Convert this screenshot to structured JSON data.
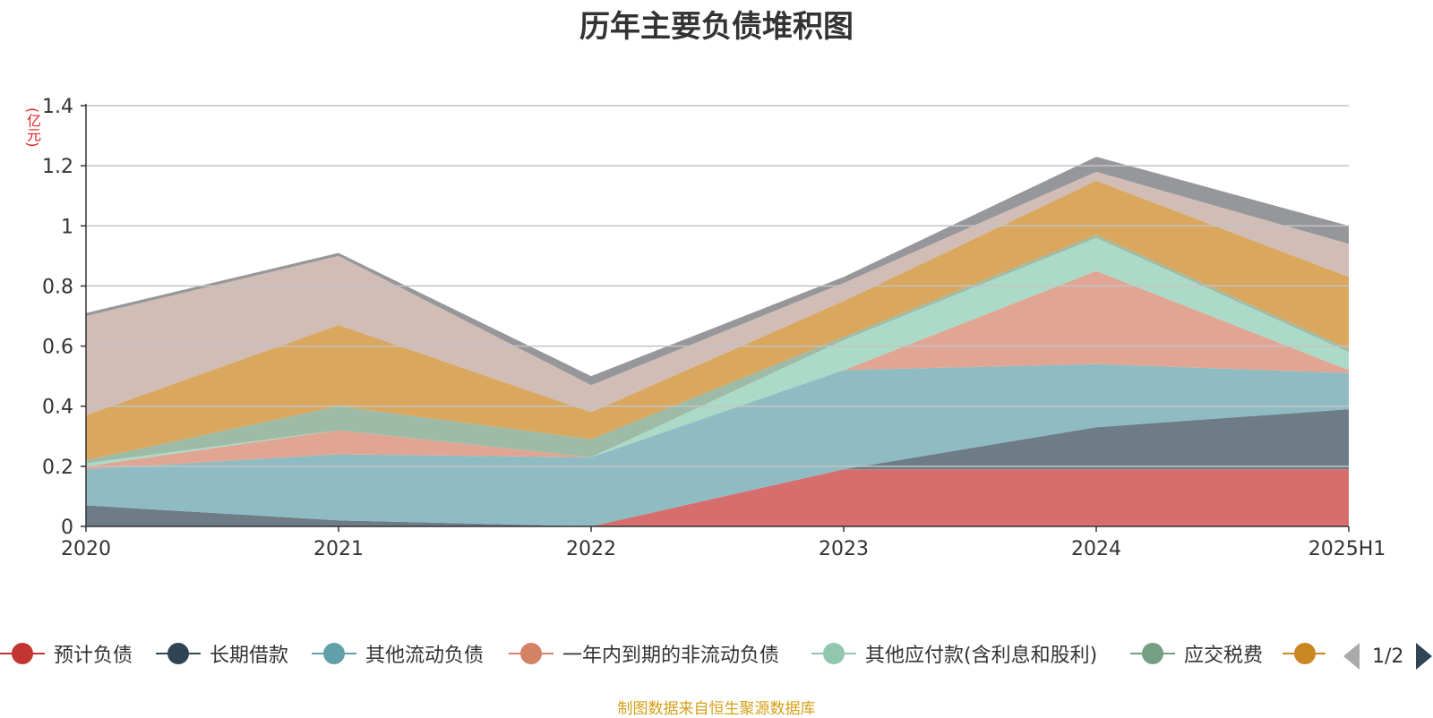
{
  "chart_data": {
    "type": "area",
    "stacked": true,
    "title": "历年主要负债堆积图",
    "unit_label": "(亿元)",
    "categories": [
      "2020",
      "2021",
      "2022",
      "2023",
      "2024",
      "2025H1"
    ],
    "ylim": [
      0,
      1.4
    ],
    "yticks": [
      0,
      0.2,
      0.4,
      0.6,
      0.8,
      1,
      1.2,
      1.4
    ],
    "ytick_labels": [
      "0",
      "0.2",
      "0.4",
      "0.6",
      "0.8",
      "1",
      "1.2",
      "1.4"
    ],
    "grid": true,
    "legend_position": "bottom",
    "series": [
      {
        "name": "预计负债",
        "color": "#d56e6c",
        "legend_color": "#c23531",
        "values": [
          0,
          0,
          0,
          0.19,
          0.19,
          0.19
        ]
      },
      {
        "name": "长期借款",
        "color": "#6d7c87",
        "legend_color": "#2f4554",
        "values": [
          0.07,
          0.02,
          0,
          0,
          0.14,
          0.2
        ]
      },
      {
        "name": "其他流动负债",
        "color": "#8fbbc2",
        "legend_color": "#61a0a8",
        "values": [
          0.12,
          0.22,
          0.23,
          0.33,
          0.21,
          0.12
        ]
      },
      {
        "name": "一年内到期的非流动负债",
        "color": "#e0a693",
        "legend_color": "#d48265",
        "values": [
          0.01,
          0.08,
          0,
          0,
          0.31,
          0.01
        ]
      },
      {
        "name": "其他应付款(含利息和股利)",
        "color": "#acdac8",
        "legend_color": "#91c7ae",
        "values": [
          0.01,
          0,
          0,
          0.1,
          0.11,
          0.06
        ]
      },
      {
        "name": "应交税费",
        "color": "#9dbba7",
        "legend_color": "#749f83",
        "values": [
          0.01,
          0.08,
          0.06,
          0.01,
          0.01,
          0.01
        ]
      },
      {
        "name": "",
        "color": "#d9a75e",
        "legend_color": "#ca8622",
        "values": [
          0.15,
          0.27,
          0.09,
          0.12,
          0.18,
          0.24
        ]
      },
      {
        "name": "",
        "color": "#d1bcb6",
        "legend_color": "#bda29a",
        "values": [
          0.33,
          0.23,
          0.09,
          0.06,
          0.03,
          0.11
        ]
      },
      {
        "name": "",
        "color": "#96979b",
        "legend_color": "#6e7074",
        "values": [
          0.01,
          0.01,
          0.03,
          0.02,
          0.05,
          0.06
        ]
      }
    ]
  },
  "legend": {
    "page": "1/2"
  },
  "source_note": "制图数据来自恒生聚源数据库"
}
